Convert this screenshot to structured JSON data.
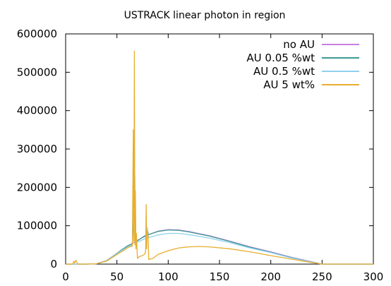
{
  "chart_data": {
    "type": "line",
    "title": "USTRACK linear photon in region",
    "xlabel": "",
    "ylabel": "",
    "xlim": [
      0,
      300
    ],
    "ylim": [
      0,
      600000
    ],
    "xticks": [
      0,
      50,
      100,
      150,
      200,
      250,
      300
    ],
    "yticks": [
      0,
      100000,
      200000,
      300000,
      400000,
      500000,
      600000
    ],
    "grid": false,
    "legend_position": "top-right",
    "series": [
      {
        "name": "no AU",
        "color": "#c77fe0",
        "x": [
          0,
          10,
          20,
          30,
          40,
          50,
          55,
          60,
          65,
          70,
          80,
          90,
          100,
          110,
          120,
          140,
          160,
          180,
          200,
          220,
          240,
          250,
          260,
          280,
          300
        ],
        "y": [
          0,
          0,
          0,
          1000,
          9000,
          28000,
          38000,
          47000,
          54000,
          62000,
          76000,
          86000,
          90000,
          89000,
          85000,
          74000,
          60000,
          45000,
          32000,
          18000,
          6000,
          0,
          0,
          0,
          0
        ]
      },
      {
        "name": "AU 0.05 %wt",
        "color": "#3d9a93",
        "x": [
          0,
          10,
          20,
          30,
          40,
          50,
          55,
          60,
          65,
          66.5,
          67.5,
          68.5,
          70,
          78.5,
          79.5,
          81,
          90,
          100,
          110,
          120,
          140,
          160,
          180,
          200,
          220,
          240,
          250,
          260,
          280,
          300
        ],
        "y": [
          0,
          0,
          0,
          1000,
          9000,
          28000,
          38000,
          47000,
          53000,
          140000,
          185000,
          60000,
          61000,
          76000,
          90000,
          77000,
          85000,
          89000,
          88000,
          84000,
          73000,
          59000,
          44000,
          31000,
          17000,
          5000,
          0,
          0,
          0,
          0
        ]
      },
      {
        "name": "AU 0.5 %wt",
        "color": "#8fd1ec",
        "x": [
          0,
          10,
          20,
          30,
          40,
          50,
          55,
          60,
          65,
          66.5,
          67.5,
          68.5,
          70,
          78.5,
          79.5,
          81,
          90,
          100,
          110,
          120,
          140,
          160,
          180,
          200,
          220,
          240,
          250,
          260,
          280,
          300
        ],
        "y": [
          0,
          0,
          0,
          1000,
          8500,
          27000,
          36000,
          44000,
          50000,
          200000,
          230000,
          57000,
          57000,
          68000,
          95000,
          69000,
          76000,
          80000,
          80000,
          77000,
          68000,
          56000,
          42000,
          30000,
          16000,
          5000,
          0,
          0,
          0,
          0
        ]
      },
      {
        "name": "AU 5 wt%",
        "color": "#e8ae2e",
        "x": [
          0,
          7,
          8,
          9,
          10,
          12,
          20,
          30,
          40,
          50,
          55,
          58,
          60,
          62,
          64,
          65,
          66,
          66.5,
          67,
          67.5,
          68,
          68.5,
          69,
          70,
          72,
          75,
          77,
          78,
          78.5,
          79,
          79.5,
          80,
          80.5,
          81,
          85,
          90,
          100,
          110,
          120,
          130,
          140,
          160,
          180,
          200,
          220,
          240,
          250,
          260,
          280,
          300
        ],
        "y": [
          0,
          0,
          8000,
          3000,
          10000,
          0,
          0,
          1000,
          8000,
          25000,
          33000,
          38000,
          42000,
          45000,
          46000,
          47000,
          350000,
          60000,
          555000,
          50000,
          190000,
          40000,
          80000,
          15000,
          20000,
          22000,
          26000,
          35000,
          155000,
          40000,
          85000,
          80000,
          70000,
          12000,
          15000,
          25000,
          35000,
          42000,
          45000,
          46000,
          45000,
          40000,
          32000,
          22000,
          13000,
          4000,
          0,
          0,
          0,
          0
        ]
      }
    ]
  }
}
